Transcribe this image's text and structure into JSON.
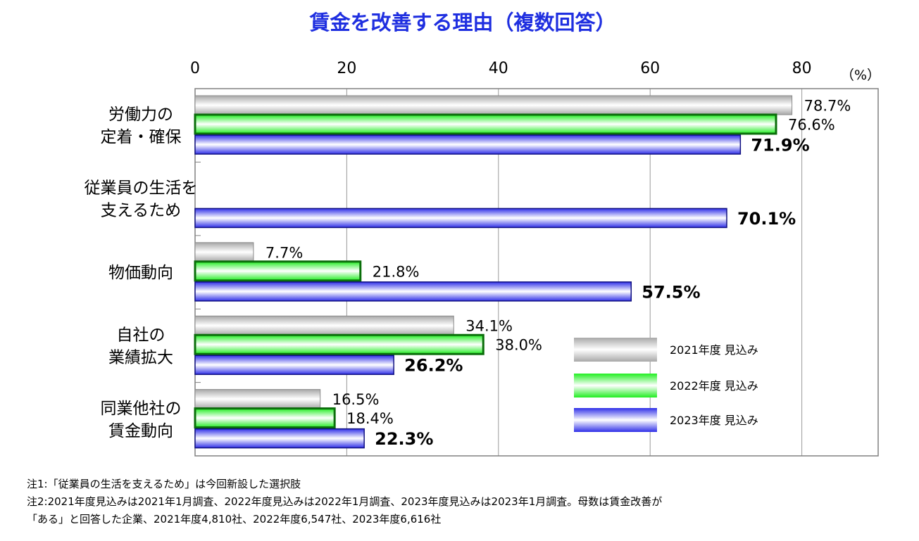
{
  "chart_data": {
    "type": "bar",
    "orientation": "horizontal",
    "title": "賃金を改善する理由（複数回答）",
    "unit_label": "（%）",
    "xlim": [
      0,
      80
    ],
    "x_ticks": [
      "0",
      "20",
      "40",
      "60",
      "80"
    ],
    "grid": true,
    "legend_position": "bottom-right",
    "categories": [
      [
        "労働力の",
        "定着・確保"
      ],
      [
        "従業員の生活を",
        "支えるため"
      ],
      [
        "物価動向"
      ],
      [
        "自社の",
        "業績拡大"
      ],
      [
        "同業他社の",
        "賃金動向"
      ]
    ],
    "series": [
      {
        "name": "2021年度 見込み",
        "color": "#c8c8c8",
        "values": [
          78.7,
          null,
          7.7,
          34.1,
          16.5
        ],
        "labels": [
          "78.7%",
          "",
          "7.7%",
          "34.1%",
          "16.5%"
        ]
      },
      {
        "name": "2022年度 見込み",
        "color": "#22ee22",
        "values": [
          76.6,
          null,
          21.8,
          38.0,
          18.4
        ],
        "labels": [
          "76.6%",
          "",
          "21.8%",
          "38.0%",
          "18.4%"
        ]
      },
      {
        "name": "2023年度 見込み",
        "color": "#3333ee",
        "values": [
          71.9,
          70.1,
          57.5,
          26.2,
          22.3
        ],
        "labels": [
          "71.9%",
          "70.1%",
          "57.5%",
          "26.2%",
          "22.3%"
        ]
      }
    ]
  },
  "notes": [
    "注1:「従業員の生活を支えるため」は今回新設した選択肢",
    "注2:2021年度見込みは2021年1月調査、2022年度見込みは2022年1月調査、2023年度見込みは2023年1月調査。母数は賃金改善が",
    "「ある」と回答した企業、2021年度4,810社、2022年度6,547社、2023年度6,616社"
  ]
}
